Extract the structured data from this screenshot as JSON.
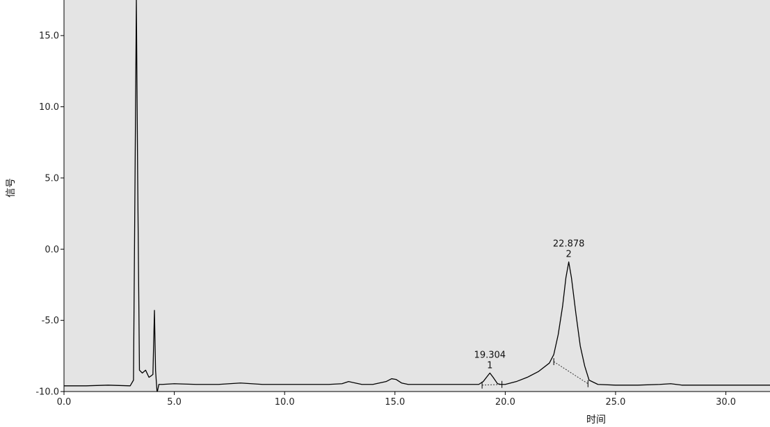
{
  "chart_data": {
    "type": "line",
    "title": "",
    "xlabel": "时间",
    "ylabel": "信号",
    "xlim": [
      0,
      32
    ],
    "ylim": [
      -10,
      17.5
    ],
    "xticks": [
      0,
      5,
      10,
      15,
      20,
      25,
      30
    ],
    "yticks": [
      -10,
      -5,
      0,
      5,
      10,
      15
    ],
    "tick_labels_x": [
      "0.0",
      "5.0",
      "10.0",
      "15.0",
      "20.0",
      "25.0",
      "30.0"
    ],
    "tick_labels_y": [
      "-10.0",
      "-5.0",
      "0.0",
      "5.0",
      "10.0",
      "15.0"
    ],
    "grid": false,
    "plot_background": "#e4e4e4",
    "line_color": "#000000",
    "series": [
      {
        "x": [
          0,
          1,
          2,
          3,
          3.15,
          3.22,
          3.28,
          3.34,
          3.42,
          3.55,
          3.7,
          3.85,
          3.95,
          4.03,
          4.1,
          4.15,
          4.22,
          4.3,
          4.45,
          5,
          6,
          7,
          8,
          9,
          10,
          11,
          12,
          12.6,
          12.9,
          13.2,
          13.5,
          14,
          14.6,
          14.85,
          15.05,
          15.3,
          15.6,
          16,
          17,
          18,
          18.8,
          19.0,
          19.2,
          19.304,
          19.45,
          19.65,
          19.8,
          20,
          20.5,
          21,
          21.5,
          22,
          22.2,
          22.4,
          22.6,
          22.75,
          22.878,
          23.0,
          23.2,
          23.4,
          23.6,
          23.8,
          24.2,
          25,
          26,
          27,
          27.5,
          28,
          29,
          30,
          31,
          32
        ],
        "y": [
          -9.6,
          -9.6,
          -9.55,
          -9.6,
          -9.2,
          5,
          17.5,
          5,
          -8.5,
          -8.7,
          -8.5,
          -9.0,
          -8.9,
          -8.8,
          -4.3,
          -8.5,
          -10.1,
          -9.5,
          -9.5,
          -9.45,
          -9.5,
          -9.5,
          -9.4,
          -9.5,
          -9.5,
          -9.5,
          -9.5,
          -9.45,
          -9.3,
          -9.4,
          -9.5,
          -9.5,
          -9.3,
          -9.1,
          -9.15,
          -9.4,
          -9.5,
          -9.5,
          -9.5,
          -9.5,
          -9.5,
          -9.3,
          -8.9,
          -8.7,
          -9.0,
          -9.45,
          -9.5,
          -9.5,
          -9.3,
          -9.0,
          -8.6,
          -8.0,
          -7.4,
          -6.0,
          -4.0,
          -2.0,
          -0.9,
          -2.0,
          -4.5,
          -6.8,
          -8.2,
          -9.2,
          -9.5,
          -9.55,
          -9.55,
          -9.5,
          -9.45,
          -9.55,
          -9.55,
          -9.55,
          -9.55,
          -9.55
        ]
      }
    ],
    "baselines": [
      {
        "x": [
          18.95,
          19.85
        ],
        "y": [
          -9.55,
          -9.5
        ]
      },
      {
        "x": [
          22.2,
          23.75
        ],
        "y": [
          -7.9,
          -9.45
        ]
      }
    ],
    "peak_marks": [
      {
        "x": 18.95,
        "y": -9.55
      },
      {
        "x": 19.85,
        "y": -9.5
      },
      {
        "x": 22.2,
        "y": -7.9
      },
      {
        "x": 23.75,
        "y": -9.45
      }
    ],
    "annotations": [
      {
        "peak": "1",
        "time": "19.304",
        "x": 19.304,
        "y": -8.7
      },
      {
        "peak": "2",
        "time": "22.878",
        "x": 22.878,
        "y": -0.9
      }
    ]
  }
}
